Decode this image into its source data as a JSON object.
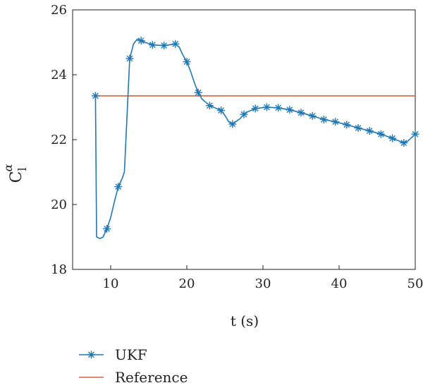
{
  "chart_data": {
    "type": "line",
    "xlabel": "t (s)",
    "ylabel": {
      "base": "C",
      "subscript": "l",
      "superscript": "α"
    },
    "xlim": [
      5,
      50
    ],
    "ylim": [
      18,
      26
    ],
    "xticks": [
      10,
      20,
      30,
      40,
      50
    ],
    "yticks": [
      18,
      20,
      22,
      24,
      26
    ],
    "grid": false,
    "legend_position": "bottom-left",
    "series": [
      {
        "name": "UKF",
        "color": "#1f77b4",
        "marker": "asterisk",
        "curve": [
          [
            8.0,
            23.35
          ],
          [
            8.15,
            19.0
          ],
          [
            8.6,
            18.95
          ],
          [
            9.0,
            19.0
          ],
          [
            9.5,
            19.25
          ],
          [
            10.0,
            19.6
          ],
          [
            10.5,
            20.1
          ],
          [
            11.0,
            20.55
          ],
          [
            11.5,
            20.8
          ],
          [
            11.8,
            21.0
          ],
          [
            12.1,
            22.5
          ],
          [
            12.5,
            24.5
          ],
          [
            13.0,
            24.95
          ],
          [
            13.5,
            25.1
          ],
          [
            14.0,
            25.05
          ],
          [
            14.5,
            25.0
          ],
          [
            15.5,
            24.92
          ],
          [
            17.0,
            24.9
          ],
          [
            18.0,
            24.93
          ],
          [
            18.5,
            24.95
          ],
          [
            19.0,
            24.85
          ],
          [
            19.5,
            24.6
          ],
          [
            20.0,
            24.4
          ],
          [
            20.5,
            24.1
          ],
          [
            21.0,
            23.75
          ],
          [
            21.5,
            23.45
          ],
          [
            22.0,
            23.25
          ],
          [
            23.0,
            23.05
          ],
          [
            24.0,
            22.95
          ],
          [
            24.5,
            22.9
          ],
          [
            25.0,
            22.75
          ],
          [
            25.5,
            22.55
          ],
          [
            26.0,
            22.48
          ],
          [
            27.0,
            22.65
          ],
          [
            27.5,
            22.78
          ],
          [
            28.0,
            22.86
          ],
          [
            29.0,
            22.96
          ],
          [
            30.5,
            23.0
          ],
          [
            32.0,
            22.98
          ],
          [
            33.5,
            22.92
          ],
          [
            35.0,
            22.83
          ],
          [
            36.5,
            22.73
          ],
          [
            38.0,
            22.62
          ],
          [
            39.5,
            22.55
          ],
          [
            41.0,
            22.46
          ],
          [
            42.5,
            22.36
          ],
          [
            44.0,
            22.27
          ],
          [
            45.5,
            22.17
          ],
          [
            47.0,
            22.04
          ],
          [
            48.5,
            21.9
          ],
          [
            49.0,
            21.95
          ],
          [
            50.0,
            22.17
          ]
        ],
        "markers_x": [
          8.0,
          9.5,
          11.0,
          12.5,
          14.0,
          15.5,
          17.0,
          18.5,
          20.0,
          21.5,
          23.0,
          24.5,
          26.0,
          27.5,
          29.0,
          30.5,
          32.0,
          33.5,
          35.0,
          36.5,
          38.0,
          39.5,
          41.0,
          42.5,
          44.0,
          45.5,
          47.0,
          48.5,
          50.0
        ]
      },
      {
        "name": "Reference",
        "color": "#e2603b",
        "marker": "none",
        "curve": [
          [
            8.0,
            23.35
          ],
          [
            50.0,
            23.35
          ]
        ]
      }
    ]
  }
}
